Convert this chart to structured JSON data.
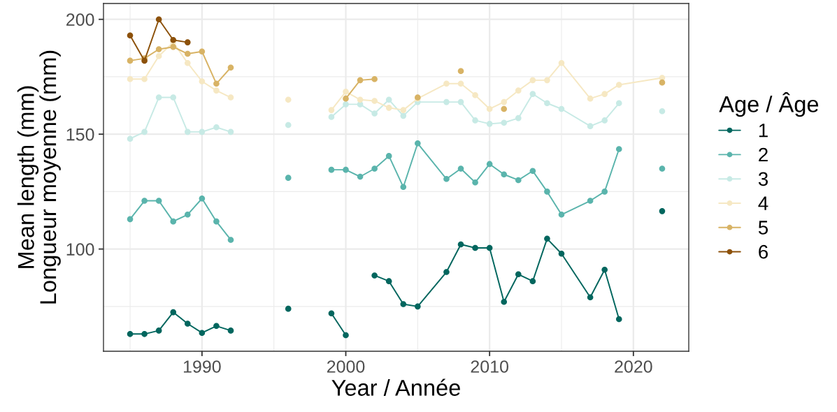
{
  "chart_data": {
    "type": "line",
    "xlabel": "Year / Année",
    "ylabel": "Mean length (mm)\nLongueur moyenne (mm)",
    "legend_title": "Age / Âge",
    "xlim": [
      1983.15,
      2023.85
    ],
    "xticks": [
      1990,
      2000,
      2010,
      2020
    ],
    "ylim": [
      55.5,
      206.9
    ],
    "yticks": [
      100,
      150,
      200
    ],
    "grid": true,
    "legend": "right",
    "marker": "circle",
    "line_style": "solid",
    "series": [
      {
        "name": "1",
        "color": "#01665e",
        "x": [
          1985,
          1986,
          1987,
          1988,
          1989,
          1990,
          1991,
          1992,
          1993,
          1996,
          1997,
          1999,
          2000,
          2001,
          2002,
          2003,
          2004,
          2005,
          2007,
          2008,
          2009,
          2010,
          2011,
          2012,
          2013,
          2014,
          2015,
          2017,
          2018,
          2019,
          2020,
          2022
        ],
        "values": [
          63,
          63,
          64.5,
          72.5,
          67.5,
          63.5,
          66.5,
          64.5,
          null,
          74,
          null,
          72,
          62.5,
          null,
          88.5,
          86,
          76,
          75,
          90,
          102,
          100.5,
          100.5,
          77,
          89,
          86,
          104.5,
          98,
          79,
          91,
          69.5,
          null,
          116.5
        ]
      },
      {
        "name": "2",
        "color": "#5ab4ac",
        "x": [
          1985,
          1986,
          1987,
          1988,
          1989,
          1990,
          1991,
          1992,
          1993,
          1996,
          1997,
          1999,
          2000,
          2001,
          2002,
          2003,
          2004,
          2005,
          2007,
          2008,
          2009,
          2010,
          2011,
          2012,
          2013,
          2014,
          2015,
          2017,
          2018,
          2019,
          2020,
          2022
        ],
        "values": [
          113,
          121,
          121,
          112,
          115,
          122,
          112,
          104,
          null,
          131,
          null,
          134.5,
          134.5,
          131.5,
          135,
          140.5,
          127,
          146,
          130.5,
          135,
          129,
          137,
          132.5,
          130,
          134,
          125,
          115,
          121,
          125,
          143.5,
          null,
          135
        ]
      },
      {
        "name": "3",
        "color": "#c7eae5",
        "x": [
          1985,
          1986,
          1987,
          1988,
          1989,
          1990,
          1991,
          1992,
          1993,
          1996,
          1997,
          1999,
          2000,
          2001,
          2002,
          2003,
          2004,
          2005,
          2007,
          2008,
          2009,
          2010,
          2011,
          2012,
          2013,
          2014,
          2015,
          2017,
          2018,
          2019,
          2020,
          2022
        ],
        "values": [
          148,
          151,
          166,
          166,
          151,
          151,
          153,
          151,
          null,
          154,
          null,
          157.5,
          163,
          163,
          159,
          165,
          158,
          164,
          164,
          164,
          156,
          154.5,
          155,
          157,
          167.5,
          163.5,
          161,
          153.5,
          156,
          163.5,
          null,
          160
        ]
      },
      {
        "name": "4",
        "color": "#f6e8c3",
        "x": [
          1985,
          1986,
          1987,
          1988,
          1989,
          1990,
          1991,
          1992,
          1993,
          1996,
          1997,
          1999,
          2000,
          2001,
          2002,
          2003,
          2004,
          2005,
          2007,
          2008,
          2009,
          2010,
          2011,
          2012,
          2013,
          2014,
          2015,
          2017,
          2018,
          2019,
          2022
        ],
        "values": [
          174,
          174,
          184,
          190,
          181,
          173,
          169,
          166,
          null,
          165,
          null,
          160.5,
          168.5,
          165,
          164.5,
          161.5,
          160.5,
          165.5,
          172,
          172,
          167,
          161,
          164,
          169,
          173.5,
          173.5,
          181,
          165.5,
          167.5,
          171.5,
          174.5
        ]
      },
      {
        "name": "5",
        "color": "#d8b365",
        "x": [
          1985,
          1986,
          1987,
          1988,
          1989,
          1990,
          1991,
          1992,
          1993,
          2000,
          2001,
          2002,
          2003,
          2005,
          2006,
          2008,
          2009,
          2011,
          2012,
          2022
        ],
        "values": [
          182,
          183,
          187,
          188,
          185,
          186,
          172,
          179,
          null,
          165.5,
          173.5,
          174,
          null,
          166,
          null,
          177.5,
          null,
          161,
          null,
          172.5
        ]
      },
      {
        "name": "6",
        "color": "#8c510a",
        "x": [
          1985,
          1986,
          1987,
          1988,
          1989
        ],
        "values": [
          193,
          182,
          200,
          191,
          190
        ]
      }
    ]
  }
}
